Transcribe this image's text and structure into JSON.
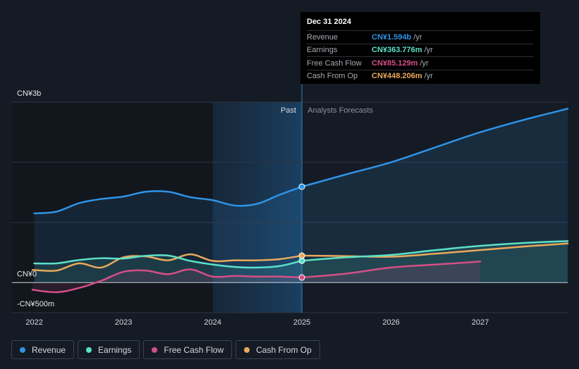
{
  "tooltip": {
    "date": "Dec 31 2024",
    "rows": [
      {
        "label": "Revenue",
        "value": "CN¥1.594b",
        "unit": "/yr",
        "color": "#2e93e6"
      },
      {
        "label": "Earnings",
        "value": "CN¥363.776m",
        "unit": "/yr",
        "color": "#5ce0c8"
      },
      {
        "label": "Free Cash Flow",
        "value": "CN¥85.129m",
        "unit": "/yr",
        "color": "#d44f87"
      },
      {
        "label": "Cash From Op",
        "value": "CN¥448.206m",
        "unit": "/yr",
        "color": "#e8a95c"
      }
    ]
  },
  "legend": [
    {
      "label": "Revenue",
      "color": "#2e93e6"
    },
    {
      "label": "Earnings",
      "color": "#5ce0c8"
    },
    {
      "label": "Free Cash Flow",
      "color": "#d44f87"
    },
    {
      "label": "Cash From Op",
      "color": "#e8a95c"
    }
  ],
  "chart_data": {
    "type": "line",
    "past_label": "Past",
    "forecast_label": "Analysts Forecasts",
    "y_ticks": [
      {
        "value": 3000,
        "label": "CN¥3b"
      },
      {
        "value": 0,
        "label": "CN¥0"
      },
      {
        "value": -500,
        "label": "-CN¥500m"
      }
    ],
    "x_ticks": [
      "2022",
      "2023",
      "2024",
      "2025",
      "2026",
      "2027"
    ],
    "x_tick_values": [
      2022,
      2023,
      2024,
      2025,
      2026,
      2027
    ],
    "xlim": [
      2021.75,
      2027.98
    ],
    "ylim": [
      -500,
      3000
    ],
    "forecast_start": 2025,
    "highlight_start": 2024,
    "series": [
      {
        "name": "Revenue",
        "color": "#2e93e6",
        "fill": true,
        "points": [
          [
            2022.0,
            1150
          ],
          [
            2022.25,
            1180
          ],
          [
            2022.5,
            1320
          ],
          [
            2022.75,
            1390
          ],
          [
            2023.0,
            1430
          ],
          [
            2023.25,
            1510
          ],
          [
            2023.5,
            1510
          ],
          [
            2023.75,
            1420
          ],
          [
            2024.0,
            1370
          ],
          [
            2024.25,
            1280
          ],
          [
            2024.5,
            1310
          ],
          [
            2024.75,
            1460
          ],
          [
            2025.0,
            1594
          ]
        ],
        "forecast": [
          [
            2025.0,
            1594
          ],
          [
            2025.5,
            1800
          ],
          [
            2026.0,
            2000
          ],
          [
            2026.5,
            2250
          ],
          [
            2027.0,
            2500
          ],
          [
            2027.5,
            2710
          ],
          [
            2027.98,
            2890
          ]
        ]
      },
      {
        "name": "Earnings",
        "color": "#5ce0c8",
        "fill": true,
        "points": [
          [
            2022.0,
            320
          ],
          [
            2022.25,
            320
          ],
          [
            2022.5,
            375
          ],
          [
            2022.75,
            405
          ],
          [
            2023.0,
            400
          ],
          [
            2023.25,
            445
          ],
          [
            2023.5,
            450
          ],
          [
            2023.75,
            360
          ],
          [
            2024.0,
            300
          ],
          [
            2024.25,
            260
          ],
          [
            2024.5,
            250
          ],
          [
            2024.75,
            275
          ],
          [
            2025.0,
            364
          ]
        ],
        "forecast": [
          [
            2025.0,
            364
          ],
          [
            2025.5,
            420
          ],
          [
            2026.0,
            460
          ],
          [
            2026.5,
            540
          ],
          [
            2027.0,
            610
          ],
          [
            2027.5,
            660
          ],
          [
            2027.98,
            690
          ]
        ]
      },
      {
        "name": "Free Cash Flow",
        "color": "#d44f87",
        "fill": true,
        "points": [
          [
            2021.98,
            -120
          ],
          [
            2022.25,
            -160
          ],
          [
            2022.5,
            -90
          ],
          [
            2022.75,
            30
          ],
          [
            2023.0,
            180
          ],
          [
            2023.25,
            200
          ],
          [
            2023.5,
            140
          ],
          [
            2023.75,
            220
          ],
          [
            2024.0,
            100
          ],
          [
            2024.25,
            110
          ],
          [
            2024.5,
            100
          ],
          [
            2024.75,
            100
          ],
          [
            2025.0,
            85
          ]
        ],
        "forecast": [
          [
            2025.0,
            85
          ],
          [
            2025.5,
            150
          ],
          [
            2026.0,
            250
          ],
          [
            2026.5,
            300
          ],
          [
            2027.0,
            350
          ]
        ]
      },
      {
        "name": "Cash From Op",
        "color": "#e8a95c",
        "fill": false,
        "points": [
          [
            2021.98,
            210
          ],
          [
            2022.25,
            200
          ],
          [
            2022.5,
            320
          ],
          [
            2022.75,
            250
          ],
          [
            2023.0,
            420
          ],
          [
            2023.25,
            435
          ],
          [
            2023.5,
            370
          ],
          [
            2023.75,
            470
          ],
          [
            2024.0,
            360
          ],
          [
            2024.25,
            370
          ],
          [
            2024.5,
            370
          ],
          [
            2024.75,
            390
          ],
          [
            2025.0,
            448
          ]
        ],
        "forecast": [
          [
            2025.0,
            448
          ],
          [
            2025.5,
            440
          ],
          [
            2026.0,
            430
          ],
          [
            2026.5,
            480
          ],
          [
            2027.0,
            540
          ],
          [
            2027.5,
            600
          ],
          [
            2027.98,
            650
          ]
        ]
      }
    ]
  }
}
